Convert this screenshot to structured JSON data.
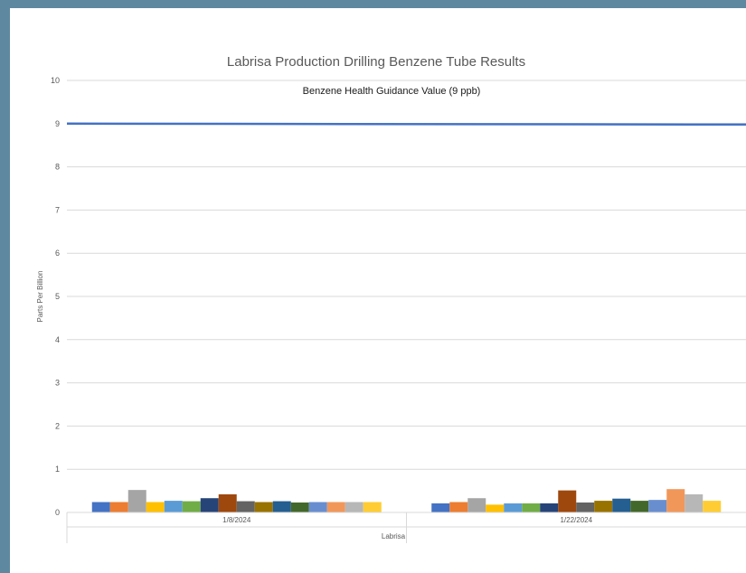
{
  "chart_data": {
    "type": "bar",
    "title": "Labrisa Production Drilling Benzene Tube Results",
    "ylabel": "Parts Per Billion",
    "xlabel": "Labrisa",
    "ylim": [
      0,
      10
    ],
    "yticks": [
      "0",
      "1",
      "2",
      "3",
      "4",
      "5",
      "6",
      "7",
      "8",
      "9",
      "10"
    ],
    "grid": true,
    "categories": [
      "1/8/2024",
      "1/22/2024"
    ],
    "reference_line": {
      "label": "Benzene Health Guidance Value (9 ppb)",
      "value": 9,
      "color": "#4472c4"
    },
    "series_colors": [
      "#4472c4",
      "#ed7d31",
      "#a5a5a5",
      "#ffc000",
      "#5b9bd5",
      "#70ad47",
      "#264478",
      "#9e480e",
      "#636363",
      "#997300",
      "#255e91",
      "#43682b",
      "#698ed0",
      "#f1975a",
      "#b7b7b7",
      "#ffcd33"
    ],
    "groups": [
      {
        "category": "1/8/2024",
        "values": [
          0.24,
          0.24,
          0.52,
          0.24,
          0.27,
          0.26,
          0.33,
          0.42,
          0.26,
          0.24,
          0.26,
          0.23,
          0.24,
          0.24,
          0.24,
          0.24
        ]
      },
      {
        "category": "1/22/2024",
        "values": [
          0.21,
          0.24,
          0.33,
          0.18,
          0.21,
          0.21,
          0.21,
          0.51,
          0.23,
          0.27,
          0.32,
          0.27,
          0.29,
          0.54,
          0.42,
          0.27
        ]
      }
    ]
  }
}
